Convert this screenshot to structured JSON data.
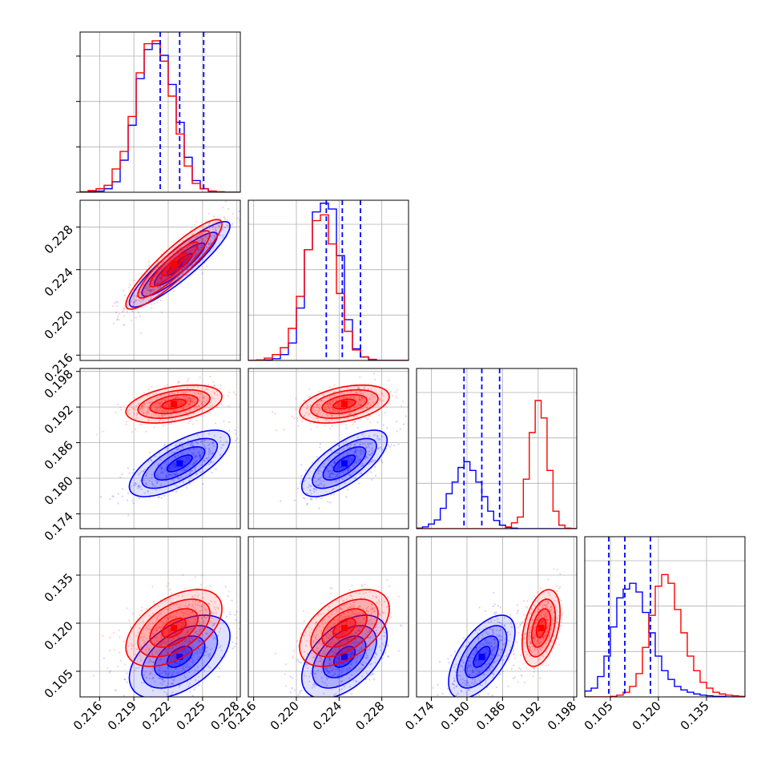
{
  "chart_data": {
    "type": "corner",
    "grid": true,
    "colors": {
      "series_a": "#ff0000",
      "series_b": "#0000ff"
    },
    "series": [
      {
        "key": "a",
        "color": "#ff0000",
        "mean": [
          0.2225,
          0.2245,
          0.1925,
          0.1185
        ],
        "sd": [
          0.0021,
          0.0021,
          0.0016,
          0.006
        ],
        "corr": {
          "0-1": 0.9,
          "0-2": 0.4,
          "1-2": 0.4,
          "0-3": 0.5,
          "1-3": 0.5,
          "2-3": 0.4
        }
      },
      {
        "key": "b",
        "color": "#0000ff",
        "mean": [
          0.223,
          0.2245,
          0.1825,
          0.1095
        ],
        "sd": [
          0.0022,
          0.002,
          0.0028,
          0.0065
        ],
        "corr": {
          "0-1": 0.9,
          "0-2": 0.7,
          "1-2": 0.7,
          "0-3": 0.5,
          "1-3": 0.5,
          "2-3": 0.6
        }
      }
    ],
    "quantile_lines": [
      [
        0.2213,
        0.223,
        0.2251
      ],
      [
        0.2228,
        0.2243,
        0.226
      ],
      [
        0.1795,
        0.1825,
        0.1855
      ],
      [
        0.1045,
        0.1095,
        0.1175
      ]
    ],
    "ranges": [
      [
        0.2143,
        0.2283
      ],
      [
        0.2155,
        0.2305
      ],
      [
        0.1715,
        0.1985
      ],
      [
        0.097,
        0.147
      ]
    ],
    "hist_ymax": 0.26,
    "hist_bins": [
      {
        "edges": [
          0.2143,
          0.2283
        ],
        "counts": {
          "a": [
            1,
            3,
            6,
            12,
            40,
            70,
            130,
            205,
            255,
            260,
            225,
            165,
            100,
            45,
            15,
            6,
            2,
            1,
            0,
            0
          ],
          "b": [
            0,
            1,
            2,
            6,
            18,
            55,
            115,
            195,
            245,
            255,
            235,
            185,
            120,
            60,
            20,
            6,
            2,
            0,
            0,
            0
          ]
        }
      },
      {
        "edges": [
          0.2155,
          0.2305
        ],
        "counts": {
          "a": [
            0,
            1,
            4,
            10,
            22,
            55,
            110,
            190,
            240,
            250,
            200,
            115,
            50,
            18,
            6,
            2,
            0,
            0,
            0,
            0
          ],
          "b": [
            0,
            0,
            1,
            3,
            10,
            30,
            90,
            190,
            255,
            270,
            260,
            180,
            70,
            20,
            6,
            1,
            0,
            0,
            0,
            0
          ]
        }
      },
      {
        "edges": [
          0.1715,
          0.1985
        ],
        "counts": {
          "a": [
            0,
            0,
            0,
            0,
            0,
            0,
            0,
            0,
            0,
            0,
            0,
            0,
            0,
            0,
            0,
            3,
            10,
            20,
            85,
            165,
            220,
            190,
            100,
            30,
            6,
            1,
            0
          ],
          "b": [
            1,
            3,
            8,
            15,
            35,
            60,
            80,
            105,
            115,
            100,
            80,
            55,
            30,
            14,
            6,
            2,
            1,
            0,
            0,
            0,
            0,
            0,
            0,
            0,
            0,
            0,
            0
          ]
        }
      },
      {
        "edges": [
          0.097,
          0.147
        ],
        "counts": {
          "a": [
            0,
            0,
            0,
            0,
            1,
            3,
            8,
            18,
            40,
            85,
            140,
            190,
            210,
            195,
            150,
            110,
            70,
            45,
            25,
            15,
            8,
            5,
            3,
            2,
            1
          ],
          "b": [
            10,
            15,
            35,
            70,
            120,
            170,
            185,
            195,
            180,
            145,
            110,
            70,
            45,
            30,
            18,
            12,
            8,
            5,
            3,
            2,
            1,
            1,
            0,
            0,
            0
          ]
        }
      }
    ],
    "axis_ticks": {
      "x": [
        [
          "0.216",
          "0.219",
          "0.222",
          "0.225",
          "0.228"
        ],
        [
          "0.216",
          "0.220",
          "0.224",
          "0.228"
        ],
        [
          "0.174",
          "0.180",
          "0.186",
          "0.192",
          "0.198"
        ],
        [
          "0.105",
          "0.120",
          "0.135"
        ]
      ],
      "y": [
        [],
        [
          "0.216",
          "0.220",
          "0.224",
          "0.228"
        ],
        [
          "0.174",
          "0.180",
          "0.186",
          "0.192",
          "0.198"
        ],
        [
          "0.105",
          "0.120",
          "0.135"
        ]
      ]
    }
  }
}
